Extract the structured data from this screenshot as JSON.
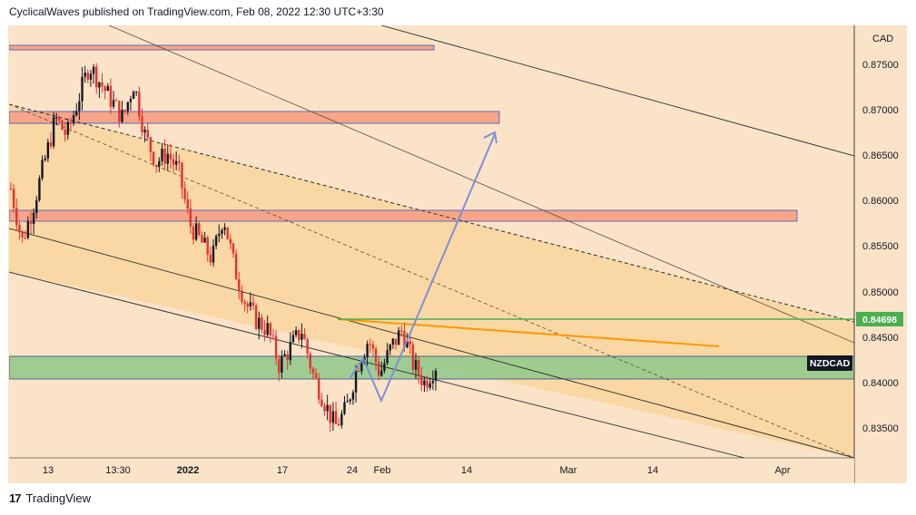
{
  "header": {
    "text": "CyclicalWaves published on TradingView.com, Feb 08, 2022 12:30 UTC+3:30"
  },
  "footer": {
    "logo": "17",
    "brand": "TradingView"
  },
  "colors": {
    "bg": "#fbe3c8",
    "channel_band": "#f9d49a",
    "resistance_zone": "#f7a488",
    "support_zone": "#8fc98a",
    "candle_up": "#131722",
    "candle_down": "#e5322d",
    "level_line": "#4caf50",
    "trend_orange": "#ff9800",
    "arrow_blue": "#7e8fd6"
  },
  "chart_data": {
    "type": "candlestick",
    "symbol": "NZDCAD",
    "currency_label": "CAD",
    "last_price_label": "0.84698",
    "x_ticks": [
      "13",
      "13:30",
      "2022",
      "17",
      "24",
      "Feb",
      "14",
      "Mar",
      "14",
      "Apr"
    ],
    "y_ticks": [
      "0.87500",
      "0.87000",
      "0.86500",
      "0.86000",
      "0.85500",
      "0.85000",
      "0.84500",
      "0.84000",
      "0.83500"
    ],
    "ylim": [
      0.8315,
      0.8805
    ],
    "price_path": [
      0.862,
      0.856,
      0.86,
      0.865,
      0.87,
      0.868,
      0.872,
      0.876,
      0.874,
      0.872,
      0.87,
      0.874,
      0.868,
      0.865,
      0.866,
      0.864,
      0.858,
      0.856,
      0.854,
      0.859,
      0.853,
      0.849,
      0.847,
      0.846,
      0.842,
      0.844,
      0.846,
      0.841,
      0.838,
      0.835,
      0.837,
      0.842,
      0.845,
      0.841,
      0.844,
      0.846,
      0.842,
      0.84,
      0.842
    ],
    "zones": [
      {
        "name": "top-resistance",
        "low": 0.8765,
        "high": 0.877
      },
      {
        "name": "upper-resistance",
        "low": 0.8688,
        "high": 0.8698
      },
      {
        "name": "mid-resistance",
        "low": 0.8577,
        "high": 0.8588
      },
      {
        "name": "support",
        "low": 0.8403,
        "high": 0.8428
      }
    ],
    "horizontal_level": 0.84698
  }
}
